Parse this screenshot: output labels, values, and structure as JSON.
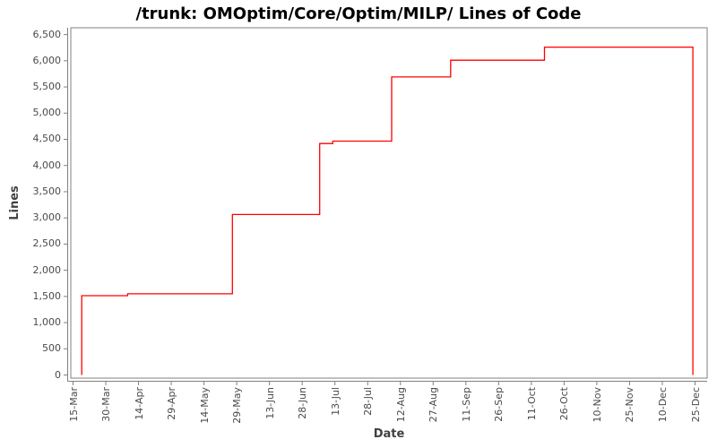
{
  "chart_data": {
    "type": "line",
    "subtype": "step",
    "title": "/trunk: OMOptim/Core/Optim/MILP/ Lines of Code",
    "xlabel": "Date",
    "ylabel": "Lines",
    "grid": false,
    "legend_position": "none",
    "line_color": "#ff0000",
    "frame_color": "#808080",
    "tick_label_color": "#4a4a4a",
    "axis_title_color": "#404040",
    "ylim": [
      0,
      6500
    ],
    "y_ticks": [
      0,
      500,
      1000,
      1500,
      2000,
      2500,
      3000,
      3500,
      4000,
      4500,
      5000,
      5500,
      6000,
      6500
    ],
    "y_tick_labels": [
      "0",
      "500",
      "1,000",
      "1,500",
      "2,000",
      "2,500",
      "3,000",
      "3,500",
      "4,000",
      "4,500",
      "5,000",
      "5,500",
      "6,000",
      "6,500"
    ],
    "x_tick_labels": [
      "15-Mar",
      "30-Mar",
      "14-Apr",
      "29-Apr",
      "14-May",
      "29-May",
      "13-Jun",
      "28-Jun",
      "13-Jul",
      "28-Jul",
      "12-Aug",
      "27-Aug",
      "11-Sep",
      "26-Sep",
      "11-Oct",
      "26-Oct",
      "10-Nov",
      "25-Nov",
      "10-Dec",
      "25-Dec"
    ],
    "x_tick_spacing_days": 15,
    "x_axis_span_days": 285,
    "series": [
      {
        "name": "Lines of Code",
        "start": {
          "day": 4,
          "date": "19-Mar",
          "lines": 0
        },
        "steps": [
          {
            "day": 4,
            "date": "19-Mar",
            "lines": 1515
          },
          {
            "day": 25,
            "date": "09-Apr",
            "lines": 1550
          },
          {
            "day": 73,
            "date": "27-May",
            "lines": 3065
          },
          {
            "day": 113,
            "date": "06-Jul",
            "lines": 4420
          },
          {
            "day": 119,
            "date": "12-Jul",
            "lines": 4465
          },
          {
            "day": 146,
            "date": "08-Aug",
            "lines": 5690
          },
          {
            "day": 173,
            "date": "04-Sep",
            "lines": 6010
          },
          {
            "day": 216,
            "date": "17-Oct",
            "lines": 6260
          },
          {
            "day": 284,
            "date": "24-Dec",
            "lines": 0
          }
        ]
      }
    ]
  }
}
